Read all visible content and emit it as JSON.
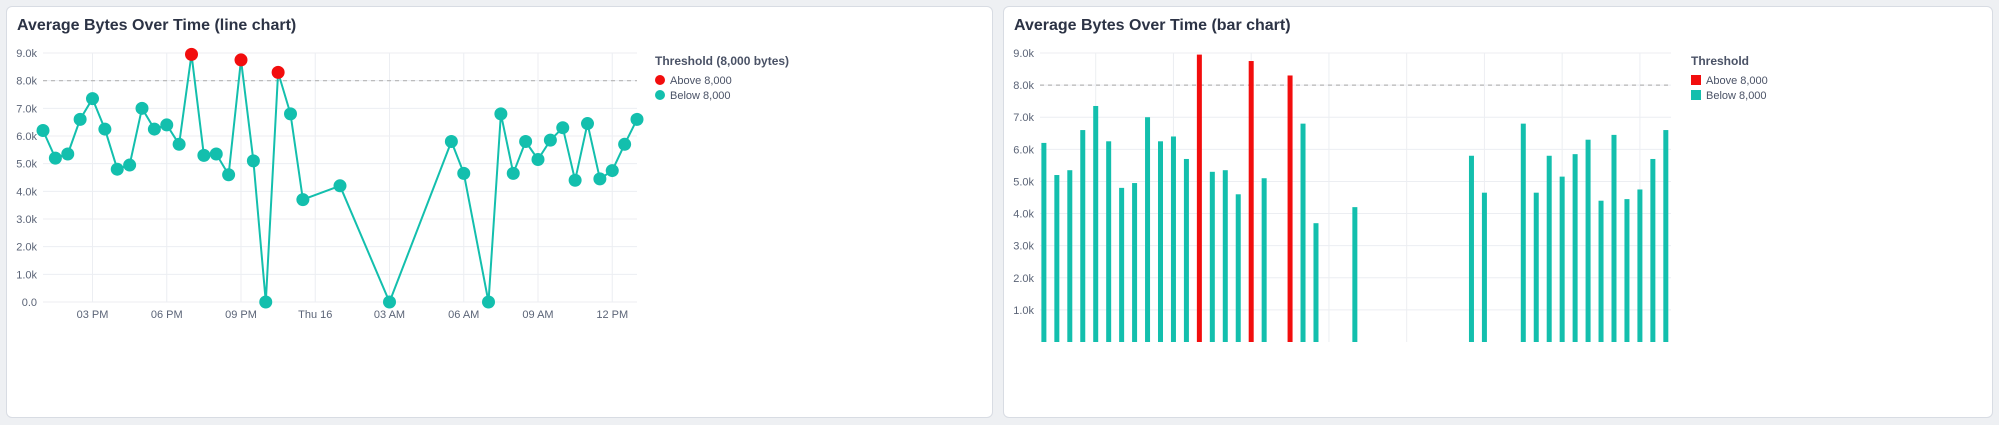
{
  "colors": {
    "above": "#f20d0d",
    "below": "#13bfad",
    "threshold_line": "#b5b5b5",
    "grid": "#eceef2"
  },
  "panels": {
    "line": {
      "title": "Average Bytes Over Time (line chart)"
    },
    "bar": {
      "title": "Average Bytes Over Time (bar chart)"
    }
  },
  "chart_data": [
    {
      "type": "line",
      "title": "Average Bytes Over Time (line chart)",
      "xlabel": "",
      "ylabel": "",
      "x_tick_labels": [
        "03 PM",
        "06 PM",
        "09 PM",
        "Thu 16",
        "03 AM",
        "06 AM",
        "09 AM",
        "12 PM"
      ],
      "y_tick_labels": [
        "0.0",
        "1.0k",
        "2.0k",
        "3.0k",
        "4.0k",
        "5.0k",
        "6.0k",
        "7.0k",
        "8.0k",
        "9.0k"
      ],
      "ylim": [
        0,
        9000
      ],
      "threshold": 8000,
      "grid": true,
      "legend": {
        "title": "Threshold (8,000 bytes)",
        "position": "right",
        "entries": [
          "Above 8,000",
          "Below 8,000"
        ]
      },
      "points": [
        {
          "t": "Wed 13:00",
          "y": 6200
        },
        {
          "t": "Wed 13:30",
          "y": 5200
        },
        {
          "t": "Wed 14:00",
          "y": 5350
        },
        {
          "t": "Wed 14:30",
          "y": 6600
        },
        {
          "t": "Wed 15:00",
          "y": 7350
        },
        {
          "t": "Wed 15:30",
          "y": 6250
        },
        {
          "t": "Wed 16:00",
          "y": 4800
        },
        {
          "t": "Wed 16:30",
          "y": 4950
        },
        {
          "t": "Wed 17:00",
          "y": 7000
        },
        {
          "t": "Wed 17:30",
          "y": 6250
        },
        {
          "t": "Wed 18:00",
          "y": 6400
        },
        {
          "t": "Wed 18:30",
          "y": 5700
        },
        {
          "t": "Wed 19:00",
          "y": 8950
        },
        {
          "t": "Wed 19:30",
          "y": 5300
        },
        {
          "t": "Wed 20:00",
          "y": 5350
        },
        {
          "t": "Wed 20:30",
          "y": 4600
        },
        {
          "t": "Wed 21:00",
          "y": 8750
        },
        {
          "t": "Wed 21:30",
          "y": 5100
        },
        {
          "t": "Wed 22:00",
          "y": 0
        },
        {
          "t": "Wed 22:30",
          "y": 8300
        },
        {
          "t": "Wed 23:00",
          "y": 6800
        },
        {
          "t": "Wed 23:30",
          "y": 3700
        },
        {
          "t": "Thu 01:00",
          "y": 4200
        },
        {
          "t": "Thu 03:00",
          "y": 0
        },
        {
          "t": "Thu 05:30",
          "y": 5800
        },
        {
          "t": "Thu 06:00",
          "y": 4650
        },
        {
          "t": "Thu 07:00",
          "y": 0
        },
        {
          "t": "Thu 07:30",
          "y": 6800
        },
        {
          "t": "Thu 08:00",
          "y": 4650
        },
        {
          "t": "Thu 08:30",
          "y": 5800
        },
        {
          "t": "Thu 09:00",
          "y": 5150
        },
        {
          "t": "Thu 09:30",
          "y": 5850
        },
        {
          "t": "Thu 10:00",
          "y": 6300
        },
        {
          "t": "Thu 10:30",
          "y": 4400
        },
        {
          "t": "Thu 11:00",
          "y": 6450
        },
        {
          "t": "Thu 11:30",
          "y": 4450
        },
        {
          "t": "Thu 12:00",
          "y": 4750
        },
        {
          "t": "Thu 12:30",
          "y": 5700
        },
        {
          "t": "Thu 13:00",
          "y": 6600
        }
      ]
    },
    {
      "type": "bar",
      "title": "Average Bytes Over Time (bar chart)",
      "xlabel": "",
      "ylabel": "",
      "y_tick_labels": [
        "1.0k",
        "2.0k",
        "3.0k",
        "4.0k",
        "5.0k",
        "6.0k",
        "7.0k",
        "8.0k",
        "9.0k"
      ],
      "ylim": [
        0,
        9000
      ],
      "threshold": 8000,
      "grid": true,
      "legend": {
        "title": "Threshold",
        "position": "right",
        "entries": [
          "Above 8,000",
          "Below 8,000"
        ]
      },
      "points": [
        {
          "t": "Wed 13:00",
          "y": 6200
        },
        {
          "t": "Wed 13:30",
          "y": 5200
        },
        {
          "t": "Wed 14:00",
          "y": 5350
        },
        {
          "t": "Wed 14:30",
          "y": 6600
        },
        {
          "t": "Wed 15:00",
          "y": 7350
        },
        {
          "t": "Wed 15:30",
          "y": 6250
        },
        {
          "t": "Wed 16:00",
          "y": 4800
        },
        {
          "t": "Wed 16:30",
          "y": 4950
        },
        {
          "t": "Wed 17:00",
          "y": 7000
        },
        {
          "t": "Wed 17:30",
          "y": 6250
        },
        {
          "t": "Wed 18:00",
          "y": 6400
        },
        {
          "t": "Wed 18:30",
          "y": 5700
        },
        {
          "t": "Wed 19:00",
          "y": 8950
        },
        {
          "t": "Wed 19:30",
          "y": 5300
        },
        {
          "t": "Wed 20:00",
          "y": 5350
        },
        {
          "t": "Wed 20:30",
          "y": 4600
        },
        {
          "t": "Wed 21:00",
          "y": 8750
        },
        {
          "t": "Wed 21:30",
          "y": 5100
        },
        {
          "t": "Wed 22:00",
          "y": 0
        },
        {
          "t": "Wed 22:30",
          "y": 8300
        },
        {
          "t": "Wed 23:00",
          "y": 6800
        },
        {
          "t": "Wed 23:30",
          "y": 3700
        },
        {
          "t": "Thu 01:00",
          "y": 4200
        },
        {
          "t": "Thu 03:00",
          "y": 0
        },
        {
          "t": "Thu 05:30",
          "y": 5800
        },
        {
          "t": "Thu 06:00",
          "y": 4650
        },
        {
          "t": "Thu 07:00",
          "y": 0
        },
        {
          "t": "Thu 07:30",
          "y": 6800
        },
        {
          "t": "Thu 08:00",
          "y": 4650
        },
        {
          "t": "Thu 08:30",
          "y": 5800
        },
        {
          "t": "Thu 09:00",
          "y": 5150
        },
        {
          "t": "Thu 09:30",
          "y": 5850
        },
        {
          "t": "Thu 10:00",
          "y": 6300
        },
        {
          "t": "Thu 10:30",
          "y": 4400
        },
        {
          "t": "Thu 11:00",
          "y": 6450
        },
        {
          "t": "Thu 11:30",
          "y": 4450
        },
        {
          "t": "Thu 12:00",
          "y": 4750
        },
        {
          "t": "Thu 12:30",
          "y": 5700
        },
        {
          "t": "Thu 13:00",
          "y": 6600
        }
      ]
    }
  ]
}
